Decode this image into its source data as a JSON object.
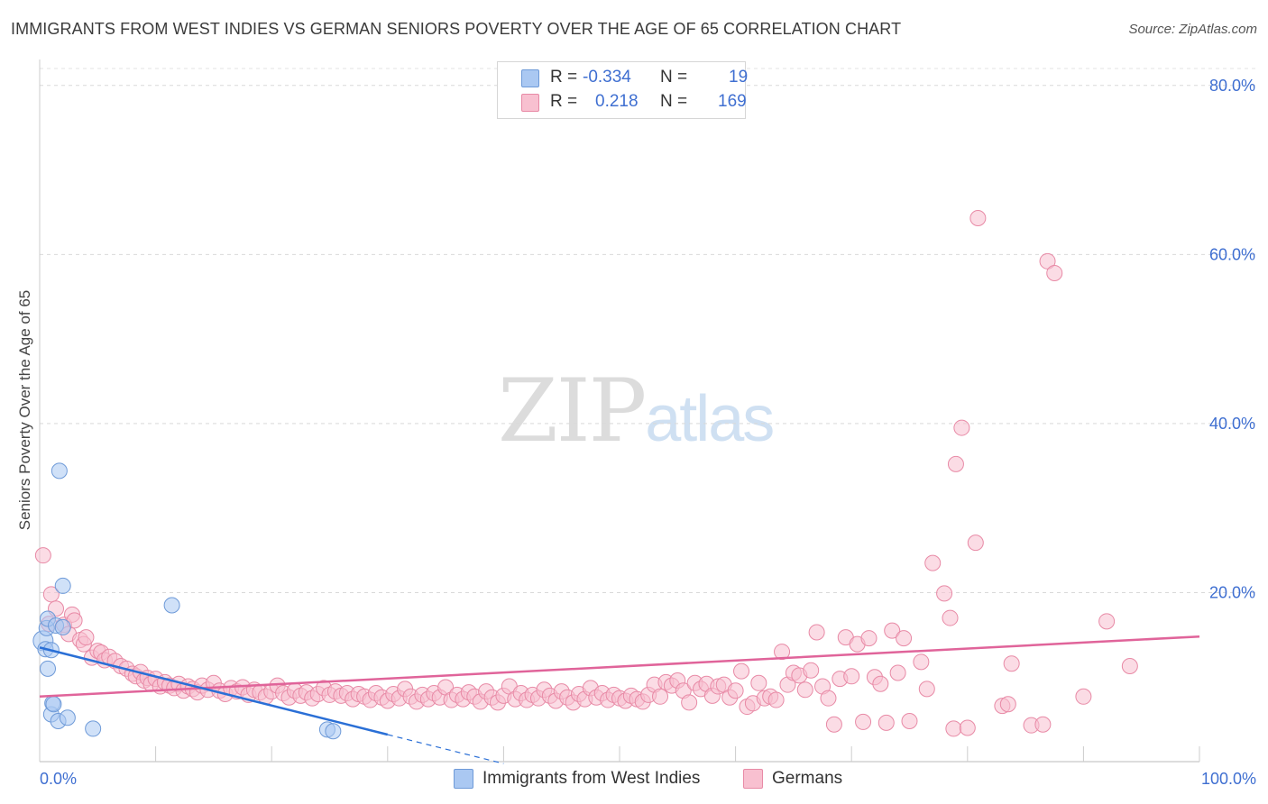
{
  "header": {
    "title": "IMMIGRANTS FROM WEST INDIES VS GERMAN SENIORS POVERTY OVER THE AGE OF 65 CORRELATION CHART",
    "source": "Source: ZipAtlas.com"
  },
  "watermark": {
    "zip": "ZIP",
    "atlas": "atlas"
  },
  "legend": {
    "rows": [
      {
        "r_label": "R =",
        "r_value": "-0.334",
        "n_label": "N =",
        "n_value": "19",
        "color": "#aac8f2",
        "border": "#6e9ad8"
      },
      {
        "r_label": "R =",
        "r_value": "0.218",
        "n_label": "N =",
        "n_value": "169",
        "color": "#f8c0d0",
        "border": "#e88aa6"
      }
    ]
  },
  "bottom_legend": [
    {
      "label": "Immigrants from West Indies",
      "color": "#aac8f2",
      "border": "#6e9ad8"
    },
    {
      "label": "Germans",
      "color": "#f8c0d0",
      "border": "#e88aa6"
    }
  ],
  "chart_data": {
    "type": "scatter",
    "title": "IMMIGRANTS FROM WEST INDIES VS GERMAN SENIORS POVERTY OVER THE AGE OF 65 CORRELATION CHART",
    "xlabel": "",
    "ylabel": "Seniors Poverty Over the Age of 65",
    "xlim": [
      0,
      100
    ],
    "ylim": [
      0,
      82
    ],
    "x_tick_labels": [
      "0.0%",
      "100.0%"
    ],
    "y_tick_labels": [
      {
        "value": 20,
        "label": "20.0%"
      },
      {
        "value": 40,
        "label": "40.0%"
      },
      {
        "value": 60,
        "label": "60.0%"
      },
      {
        "value": 80,
        "label": "80.0%"
      }
    ],
    "grid": "horizontal dashed",
    "legend_placement": "top-center",
    "series": [
      {
        "name": "Immigrants from West Indies",
        "color": "#aac8f2",
        "stroke": "#6e9ad8",
        "trend_color": "#2a6fd6",
        "trend": {
          "x0": 0,
          "y0": 13.5,
          "x1": 30,
          "y1": 3.2,
          "dash_to_x": 40
        },
        "points": [
          [
            0.3,
            14.3
          ],
          [
            0.5,
            13.3
          ],
          [
            0.6,
            15.8
          ],
          [
            0.7,
            11.0
          ],
          [
            0.7,
            16.9
          ],
          [
            1.0,
            13.2
          ],
          [
            1.0,
            5.6
          ],
          [
            1.1,
            6.9
          ],
          [
            1.2,
            6.8
          ],
          [
            1.4,
            16.1
          ],
          [
            1.6,
            4.8
          ],
          [
            1.7,
            34.4
          ],
          [
            2.0,
            20.8
          ],
          [
            2.0,
            15.9
          ],
          [
            2.4,
            5.2
          ],
          [
            4.6,
            3.9
          ],
          [
            11.4,
            18.5
          ],
          [
            24.8,
            3.8
          ],
          [
            25.3,
            3.6
          ]
        ]
      },
      {
        "name": "Germans",
        "color": "#f8c0d0",
        "stroke": "#e88aa6",
        "trend_color": "#e0649a",
        "trend": {
          "x0": 0,
          "y0": 7.7,
          "x1": 100,
          "y1": 14.8
        },
        "points": [
          [
            0.3,
            24.4
          ],
          [
            0.8,
            16.3
          ],
          [
            1.0,
            19.8
          ],
          [
            1.4,
            18.1
          ],
          [
            2.1,
            16.2
          ],
          [
            2.5,
            15.1
          ],
          [
            2.8,
            17.4
          ],
          [
            3.0,
            16.7
          ],
          [
            3.5,
            14.4
          ],
          [
            3.8,
            13.9
          ],
          [
            4.0,
            14.7
          ],
          [
            4.5,
            12.3
          ],
          [
            5.0,
            13.1
          ],
          [
            5.3,
            12.9
          ],
          [
            5.6,
            12.0
          ],
          [
            6.0,
            12.4
          ],
          [
            6.5,
            11.9
          ],
          [
            7.0,
            11.3
          ],
          [
            7.5,
            11.0
          ],
          [
            8.0,
            10.4
          ],
          [
            8.3,
            10.1
          ],
          [
            8.7,
            10.6
          ],
          [
            9.0,
            9.6
          ],
          [
            9.3,
            9.9
          ],
          [
            9.6,
            9.2
          ],
          [
            10.0,
            9.8
          ],
          [
            10.4,
            8.9
          ],
          [
            10.8,
            9.4
          ],
          [
            11.2,
            9.0
          ],
          [
            11.6,
            8.7
          ],
          [
            12.0,
            9.2
          ],
          [
            12.4,
            8.4
          ],
          [
            12.8,
            8.9
          ],
          [
            13.2,
            8.6
          ],
          [
            13.6,
            8.2
          ],
          [
            14.0,
            9.0
          ],
          [
            14.5,
            8.5
          ],
          [
            15.0,
            9.3
          ],
          [
            15.5,
            8.4
          ],
          [
            16.0,
            8.0
          ],
          [
            16.5,
            8.7
          ],
          [
            17.0,
            8.3
          ],
          [
            17.5,
            8.8
          ],
          [
            18.0,
            7.9
          ],
          [
            18.5,
            8.5
          ],
          [
            19.0,
            8.2
          ],
          [
            19.5,
            7.7
          ],
          [
            20.0,
            8.3
          ],
          [
            20.5,
            9.0
          ],
          [
            21.0,
            8.1
          ],
          [
            21.5,
            7.6
          ],
          [
            22.0,
            8.4
          ],
          [
            22.5,
            7.8
          ],
          [
            23.0,
            8.2
          ],
          [
            23.5,
            7.5
          ],
          [
            24.0,
            8.0
          ],
          [
            24.5,
            8.7
          ],
          [
            25.0,
            7.9
          ],
          [
            25.5,
            8.3
          ],
          [
            26.0,
            7.8
          ],
          [
            26.5,
            8.1
          ],
          [
            27.0,
            7.4
          ],
          [
            27.5,
            8.0
          ],
          [
            28.0,
            7.7
          ],
          [
            28.5,
            7.3
          ],
          [
            29.0,
            8.1
          ],
          [
            29.5,
            7.6
          ],
          [
            30.0,
            7.2
          ],
          [
            30.5,
            8.0
          ],
          [
            31.0,
            7.5
          ],
          [
            31.5,
            8.6
          ],
          [
            32.0,
            7.7
          ],
          [
            32.5,
            7.1
          ],
          [
            33.0,
            7.9
          ],
          [
            33.5,
            7.4
          ],
          [
            34.0,
            8.1
          ],
          [
            34.5,
            7.6
          ],
          [
            35.0,
            8.8
          ],
          [
            35.5,
            7.3
          ],
          [
            36.0,
            7.9
          ],
          [
            36.5,
            7.4
          ],
          [
            37.0,
            8.2
          ],
          [
            37.5,
            7.7
          ],
          [
            38.0,
            7.1
          ],
          [
            38.5,
            8.3
          ],
          [
            39.0,
            7.6
          ],
          [
            39.5,
            7.0
          ],
          [
            40.0,
            7.8
          ],
          [
            40.5,
            8.9
          ],
          [
            41.0,
            7.4
          ],
          [
            41.5,
            8.1
          ],
          [
            42.0,
            7.3
          ],
          [
            42.5,
            7.9
          ],
          [
            43.0,
            7.5
          ],
          [
            43.5,
            8.5
          ],
          [
            44.0,
            7.8
          ],
          [
            44.5,
            7.2
          ],
          [
            45.0,
            8.3
          ],
          [
            45.5,
            7.6
          ],
          [
            46.0,
            7.0
          ],
          [
            46.5,
            8.0
          ],
          [
            47.0,
            7.4
          ],
          [
            47.5,
            8.7
          ],
          [
            48.0,
            7.6
          ],
          [
            48.5,
            8.1
          ],
          [
            49.0,
            7.3
          ],
          [
            49.5,
            7.9
          ],
          [
            50.0,
            7.5
          ],
          [
            50.5,
            7.2
          ],
          [
            51.0,
            7.8
          ],
          [
            51.5,
            7.4
          ],
          [
            52.0,
            7.1
          ],
          [
            52.5,
            7.9
          ],
          [
            53.0,
            9.1
          ],
          [
            53.5,
            7.7
          ],
          [
            54.0,
            9.4
          ],
          [
            54.5,
            9.0
          ],
          [
            55.0,
            9.6
          ],
          [
            55.5,
            8.4
          ],
          [
            56.0,
            7.0
          ],
          [
            56.5,
            9.3
          ],
          [
            57.0,
            8.6
          ],
          [
            57.5,
            9.2
          ],
          [
            58.0,
            7.8
          ],
          [
            58.5,
            8.9
          ],
          [
            59.0,
            9.1
          ],
          [
            59.5,
            7.6
          ],
          [
            60.0,
            8.4
          ],
          [
            60.5,
            10.7
          ],
          [
            61.0,
            6.5
          ],
          [
            61.5,
            6.9
          ],
          [
            62.0,
            9.3
          ],
          [
            62.5,
            7.5
          ],
          [
            63.0,
            7.7
          ],
          [
            63.5,
            7.3
          ],
          [
            64.0,
            13.0
          ],
          [
            64.5,
            9.1
          ],
          [
            65.0,
            10.5
          ],
          [
            65.5,
            10.2
          ],
          [
            66.0,
            8.5
          ],
          [
            66.5,
            10.8
          ],
          [
            67.0,
            15.3
          ],
          [
            67.5,
            8.9
          ],
          [
            68.0,
            7.5
          ],
          [
            68.5,
            4.4
          ],
          [
            69.0,
            9.8
          ],
          [
            69.5,
            14.7
          ],
          [
            70.0,
            10.1
          ],
          [
            70.5,
            13.9
          ],
          [
            71.0,
            4.7
          ],
          [
            71.5,
            14.6
          ],
          [
            72.0,
            10.0
          ],
          [
            72.5,
            9.2
          ],
          [
            73.0,
            4.6
          ],
          [
            73.5,
            15.5
          ],
          [
            74.0,
            10.5
          ],
          [
            74.5,
            14.6
          ],
          [
            75.0,
            4.8
          ],
          [
            76.0,
            11.8
          ],
          [
            76.5,
            8.6
          ],
          [
            77.0,
            23.5
          ],
          [
            78.0,
            19.9
          ],
          [
            78.5,
            17.0
          ],
          [
            78.8,
            3.9
          ],
          [
            79.0,
            35.2
          ],
          [
            79.5,
            39.5
          ],
          [
            80.0,
            4.0
          ],
          [
            80.7,
            25.9
          ],
          [
            80.9,
            64.3
          ],
          [
            83.0,
            6.6
          ],
          [
            83.5,
            6.8
          ],
          [
            83.8,
            11.6
          ],
          [
            85.5,
            4.3
          ],
          [
            86.5,
            4.4
          ],
          [
            86.9,
            59.2
          ],
          [
            87.5,
            57.8
          ],
          [
            90.0,
            7.7
          ],
          [
            92.0,
            16.6
          ],
          [
            94.0,
            11.3
          ]
        ]
      }
    ]
  }
}
